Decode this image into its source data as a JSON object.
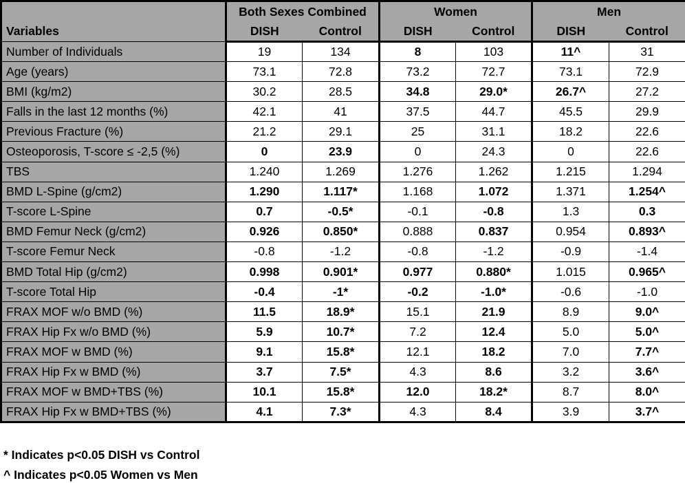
{
  "chart_data": {
    "type": "table",
    "corner_label": "Variables",
    "groups": [
      {
        "label": "Both Sexes Combined",
        "subcolumns": [
          "DISH",
          "Control"
        ]
      },
      {
        "label": "Women",
        "subcolumns": [
          "DISH",
          "Control"
        ]
      },
      {
        "label": "Men",
        "subcolumns": [
          "DISH",
          "Control"
        ]
      }
    ],
    "rows": [
      {
        "label": "Number of Individuals",
        "values": [
          "19",
          "134",
          "8",
          "103",
          "11^",
          "31"
        ],
        "bold": [
          false,
          false,
          true,
          false,
          true,
          false
        ]
      },
      {
        "label": "Age (years)",
        "values": [
          "73.1",
          "72.8",
          "73.2",
          "72.7",
          "73.1",
          "72.9"
        ],
        "bold": [
          false,
          false,
          false,
          false,
          false,
          false
        ]
      },
      {
        "label": "BMI (kg/m2)",
        "values": [
          "30.2",
          "28.5",
          "34.8",
          "29.0*",
          "26.7^",
          "27.2"
        ],
        "bold": [
          false,
          false,
          true,
          true,
          true,
          false
        ]
      },
      {
        "label": "Falls in the last 12 months (%)",
        "values": [
          "42.1",
          "41",
          "37.5",
          "44.7",
          "45.5",
          "29.9"
        ],
        "bold": [
          false,
          false,
          false,
          false,
          false,
          false
        ]
      },
      {
        "label": "Previous Fracture (%)",
        "values": [
          "21.2",
          "29.1",
          "25",
          "31.1",
          "18.2",
          "22.6"
        ],
        "bold": [
          false,
          false,
          false,
          false,
          false,
          false
        ]
      },
      {
        "label": "Osteoporosis, T-score ≤ -2,5 (%)",
        "values": [
          "0",
          "23.9",
          "0",
          "24.3",
          "0",
          "22.6"
        ],
        "bold": [
          true,
          true,
          false,
          false,
          false,
          false
        ]
      },
      {
        "label": "TBS",
        "values": [
          "1.240",
          "1.269",
          "1.276",
          "1.262",
          "1.215",
          "1.294"
        ],
        "bold": [
          false,
          false,
          false,
          false,
          false,
          false
        ]
      },
      {
        "label": "BMD L-Spine (g/cm2)",
        "values": [
          "1.290",
          "1.117*",
          "1.168",
          "1.072",
          "1.371",
          "1.254^"
        ],
        "bold": [
          true,
          true,
          false,
          true,
          false,
          true
        ]
      },
      {
        "label": "T-score L-Spine",
        "values": [
          "0.7",
          "-0.5*",
          "-0.1",
          "-0.8",
          "1.3",
          "0.3"
        ],
        "bold": [
          true,
          true,
          false,
          true,
          false,
          true
        ]
      },
      {
        "label": "BMD Femur Neck (g/cm2)",
        "values": [
          "0.926",
          "0.850*",
          "0.888",
          "0.837",
          "0.954",
          "0.893^"
        ],
        "bold": [
          true,
          true,
          false,
          true,
          false,
          true
        ]
      },
      {
        "label": "T-score Femur Neck",
        "values": [
          "-0.8",
          "-1.2",
          "-0.8",
          "-1.2",
          "-0.9",
          "-1.4"
        ],
        "bold": [
          false,
          false,
          false,
          false,
          false,
          false
        ]
      },
      {
        "label": "BMD Total Hip (g/cm2)",
        "values": [
          "0.998",
          "0.901*",
          "0.977",
          "0.880*",
          "1.015",
          "0.965^"
        ],
        "bold": [
          true,
          true,
          true,
          true,
          false,
          true
        ]
      },
      {
        "label": "T-score Total Hip",
        "values": [
          "-0.4",
          "-1*",
          "-0.2",
          "-1.0*",
          "-0.6",
          "-1.0"
        ],
        "bold": [
          true,
          true,
          true,
          true,
          false,
          false
        ]
      },
      {
        "label": "FRAX MOF w/o BMD (%)",
        "values": [
          "11.5",
          "18.9*",
          "15.1",
          "21.9",
          "8.9",
          "9.0^"
        ],
        "bold": [
          true,
          true,
          false,
          true,
          false,
          true
        ]
      },
      {
        "label": "FRAX Hip Fx w/o BMD (%)",
        "values": [
          "5.9",
          "10.7*",
          "7.2",
          "12.4",
          "5.0",
          "5.0^"
        ],
        "bold": [
          true,
          true,
          false,
          true,
          false,
          true
        ]
      },
      {
        "label": "FRAX MOF w BMD (%)",
        "values": [
          "9.1",
          "15.8*",
          "12.1",
          "18.2",
          "7.0",
          "7.7^"
        ],
        "bold": [
          true,
          true,
          false,
          true,
          false,
          true
        ]
      },
      {
        "label": "FRAX Hip Fx w BMD (%)",
        "values": [
          "3.7",
          "7.5*",
          "4.3",
          "8.6",
          "3.2",
          "3.6^"
        ],
        "bold": [
          true,
          true,
          false,
          true,
          false,
          true
        ]
      },
      {
        "label": "FRAX MOF w BMD+TBS (%)",
        "values": [
          "10.1",
          "15.8*",
          "12.0",
          "18.2*",
          "8.7",
          "8.0^"
        ],
        "bold": [
          true,
          true,
          true,
          true,
          false,
          true
        ]
      },
      {
        "label": "FRAX Hip Fx w BMD+TBS (%)",
        "values": [
          "4.1",
          "7.3*",
          "4.3",
          "8.4",
          "3.9",
          "3.7^"
        ],
        "bold": [
          true,
          true,
          false,
          true,
          false,
          true
        ]
      }
    ],
    "footnotes": [
      "* Indicates p<0.05 DISH vs Control",
      "^ Indicates p<0.05 Women vs Men"
    ],
    "colors": {
      "header_bg": "#a6a6a6",
      "cell_bg": "#ffffff",
      "border": "#000000"
    }
  }
}
